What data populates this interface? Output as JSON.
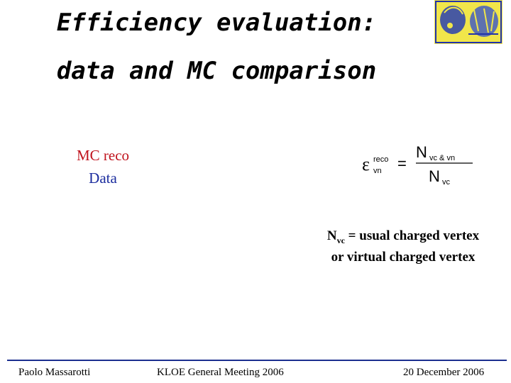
{
  "slide": {
    "title_line_1": "Efficiency evaluation:",
    "title_line_2": "data and MC comparison"
  },
  "legend": {
    "mc_label": "MC reco",
    "data_label": "Data",
    "mc_color": "#c0141e",
    "data_color": "#1b2c9e"
  },
  "formula": {
    "symbol": "ε",
    "superscript": "reco",
    "subscript": "vn",
    "equals": "=",
    "numerator_N": "N",
    "numerator_sub": "vc & vn",
    "denominator_N": "N",
    "denominator_sub": "vc"
  },
  "note": {
    "n_symbol": "N",
    "n_sub": "vc",
    "line_1_rest": " = usual charged vertex",
    "line_2": "or virtual charged vertex"
  },
  "footer": {
    "author": "Paolo Massarotti",
    "meeting": "KLOE General Meeting 2006",
    "date": "20 December 2006",
    "line_color": "#1b2f8f"
  },
  "logo": {
    "icon": "kloe-logo-icon"
  }
}
